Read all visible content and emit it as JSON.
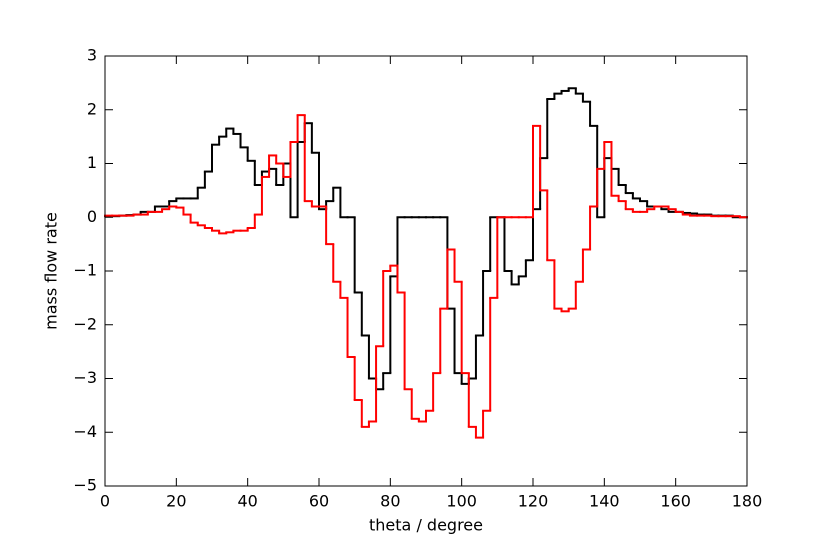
{
  "chart_data": {
    "type": "step",
    "xlabel": "theta / degree",
    "ylabel": "mass flow rate",
    "x": [
      0,
      2,
      4,
      6,
      8,
      10,
      12,
      14,
      16,
      18,
      20,
      22,
      24,
      26,
      28,
      30,
      32,
      34,
      36,
      38,
      40,
      42,
      44,
      46,
      48,
      50,
      52,
      54,
      56,
      58,
      60,
      62,
      64,
      66,
      68,
      70,
      72,
      74,
      76,
      78,
      80,
      82,
      84,
      86,
      88,
      90,
      92,
      94,
      96,
      98,
      100,
      102,
      104,
      106,
      108,
      110,
      112,
      114,
      116,
      118,
      120,
      122,
      124,
      126,
      128,
      130,
      132,
      134,
      136,
      138,
      140,
      142,
      144,
      146,
      148,
      150,
      152,
      154,
      156,
      158,
      160,
      162,
      164,
      166,
      168,
      170,
      172,
      174,
      176,
      178
    ],
    "series": [
      {
        "color": "#000000",
        "values": [
          0.02,
          0.02,
          0.03,
          0.04,
          0.05,
          0.1,
          0.1,
          0.2,
          0.2,
          0.3,
          0.35,
          0.35,
          0.35,
          0.55,
          0.85,
          1.35,
          1.5,
          1.65,
          1.55,
          1.3,
          1.05,
          0.6,
          0.85,
          0.9,
          0.6,
          1.0,
          0,
          1.4,
          1.75,
          1.2,
          0.15,
          0.3,
          0.55,
          0,
          0,
          -1.4,
          -2.2,
          -3.0,
          -3.2,
          -2.9,
          -1.1,
          0,
          0,
          0,
          0,
          0,
          0,
          0,
          -1.7,
          -2.9,
          -3.1,
          -3.0,
          -2.2,
          -1.0,
          0,
          0,
          -1.0,
          -1.25,
          -1.1,
          -0.8,
          0.15,
          1.1,
          2.2,
          2.3,
          2.35,
          2.4,
          2.3,
          2.15,
          1.7,
          0,
          1.1,
          0.9,
          0.6,
          0.45,
          0.35,
          0.3,
          0.2,
          0.2,
          0.15,
          0.1,
          0.1,
          0.08,
          0.07,
          0.05,
          0.05,
          0.03,
          0.03,
          0.03,
          0,
          0
        ]
      },
      {
        "color": "#ff0000",
        "values": [
          0.03,
          0.03,
          0.03,
          0.03,
          0.05,
          0.05,
          0.1,
          0.1,
          0.15,
          0.2,
          0.18,
          0.05,
          -0.1,
          -0.15,
          -0.2,
          -0.25,
          -0.3,
          -0.28,
          -0.25,
          -0.25,
          -0.2,
          0.05,
          0.75,
          1.15,
          1.0,
          0.75,
          1.4,
          1.9,
          0.3,
          0.2,
          0.2,
          -0.5,
          -1.2,
          -1.5,
          -2.6,
          -3.4,
          -3.9,
          -3.8,
          -2.4,
          -1.0,
          -0.9,
          -1.4,
          -3.2,
          -3.75,
          -3.8,
          -3.6,
          -2.9,
          -1.7,
          -0.6,
          -1.2,
          -2.9,
          -3.9,
          -4.1,
          -3.6,
          -1.5,
          0,
          0,
          0,
          0,
          0,
          1.7,
          0.5,
          -0.8,
          -1.7,
          -1.75,
          -1.7,
          -1.2,
          -0.6,
          0.2,
          0.9,
          1.4,
          0.4,
          0.3,
          0.15,
          0.1,
          0.1,
          0.15,
          0.2,
          0.2,
          0.15,
          0.1,
          0.05,
          0.03,
          0.03,
          0.03,
          0.02,
          0.02,
          0.02,
          0.02,
          0
        ]
      }
    ],
    "xlim": [
      0,
      180
    ],
    "xticks": [
      0,
      20,
      40,
      60,
      80,
      100,
      120,
      140,
      160,
      180
    ],
    "ylim": [
      -5,
      3
    ],
    "yticks": [
      {
        "value": -5,
        "label": "−5"
      },
      {
        "value": -4,
        "label": "−4"
      },
      {
        "value": -3,
        "label": "−3"
      },
      {
        "value": -2,
        "label": "−2"
      },
      {
        "value": -1,
        "label": "−1"
      },
      0,
      1,
      2,
      3
    ]
  }
}
